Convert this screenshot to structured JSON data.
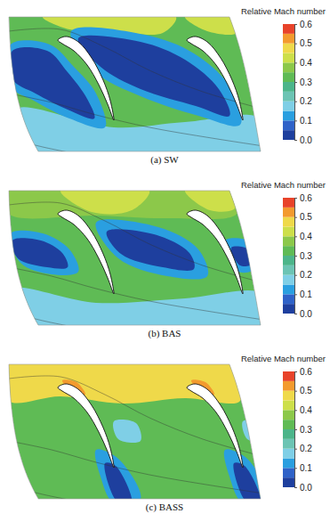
{
  "chart_data": [
    {
      "type": "contour",
      "title": "(a) SW",
      "colorbar": {
        "title": "Relative Mach number",
        "range": [
          0,
          0.6
        ],
        "ticks": [
          {
            "value": 0,
            "label": "0.0"
          },
          0.1,
          0.2,
          0.3,
          0.4,
          0.5,
          0.6
        ],
        "levels": [
          0,
          0.05,
          0.1,
          0.15,
          0.2,
          0.25,
          0.3,
          0.35,
          0.4,
          0.45,
          0.5,
          0.55,
          0.6
        ],
        "colors": [
          "#1e3f9e",
          "#2f62c8",
          "#2a9fe0",
          "#7fcfe6",
          "#6cc4b4",
          "#4cb58a",
          "#5fbb55",
          "#8cc84a",
          "#cddf4a",
          "#efd94a",
          "#f39a2e",
          "#e8432a"
        ]
      },
      "regions": [
        {
          "value": 0.32
        },
        {
          "value": 0.42
        },
        {
          "value": 0.42
        },
        {
          "value": 0.17
        },
        {
          "value": 0.12
        },
        {
          "value": 0.03
        },
        {
          "value": 0.12
        },
        {
          "value": 0.03
        }
      ]
    },
    {
      "type": "contour",
      "title": "(b) BAS",
      "colorbar": {
        "title": "Relative Mach number",
        "range": [
          0,
          0.6
        ],
        "ticks": [
          {
            "value": 0,
            "label": "0.0"
          },
          0.1,
          0.2,
          0.3,
          0.4,
          0.5,
          0.6
        ],
        "levels": [
          0,
          0.05,
          0.1,
          0.15,
          0.2,
          0.25,
          0.3,
          0.35,
          0.4,
          0.45,
          0.5,
          0.55,
          0.6
        ],
        "colors": [
          "#1e3f9e",
          "#2f62c8",
          "#2a9fe0",
          "#7fcfe6",
          "#6cc4b4",
          "#4cb58a",
          "#5fbb55",
          "#8cc84a",
          "#cddf4a",
          "#efd94a",
          "#f39a2e",
          "#e8432a"
        ]
      },
      "regions": [
        {
          "value": 0.32
        },
        {
          "value": 0.37
        },
        {
          "value": 0.42
        },
        {
          "value": 0.42
        },
        {
          "value": 0.17
        },
        {
          "value": 0.12
        },
        {
          "value": 0.03
        },
        {
          "value": 0.12
        },
        {
          "value": 0.03
        },
        {
          "value": 0.12
        },
        {
          "value": 0.03
        }
      ]
    },
    {
      "type": "contour",
      "title": "(c) BASS",
      "colorbar": {
        "title": "Relative Mach number",
        "range": [
          0,
          0.6
        ],
        "ticks": [
          {
            "value": 0,
            "label": "0.0"
          },
          0.1,
          0.2,
          0.3,
          0.4,
          0.5,
          0.6
        ],
        "levels": [
          0,
          0.05,
          0.1,
          0.15,
          0.2,
          0.25,
          0.3,
          0.35,
          0.4,
          0.45,
          0.5,
          0.55,
          0.6
        ],
        "colors": [
          "#1e3f9e",
          "#2f62c8",
          "#2a9fe0",
          "#7fcfe6",
          "#6cc4b4",
          "#4cb58a",
          "#5fbb55",
          "#8cc84a",
          "#cddf4a",
          "#efd94a",
          "#f39a2e",
          "#e8432a"
        ]
      },
      "regions": [
        {
          "value": 0.32
        },
        {
          "value": 0.47
        },
        {
          "value": 0.52
        },
        {
          "value": 0.52
        },
        {
          "value": 0.17
        },
        {
          "value": 0.12
        },
        {
          "value": 0.03
        },
        {
          "value": 0.12
        },
        {
          "value": 0.03
        },
        {
          "value": 0.17
        }
      ]
    }
  ]
}
